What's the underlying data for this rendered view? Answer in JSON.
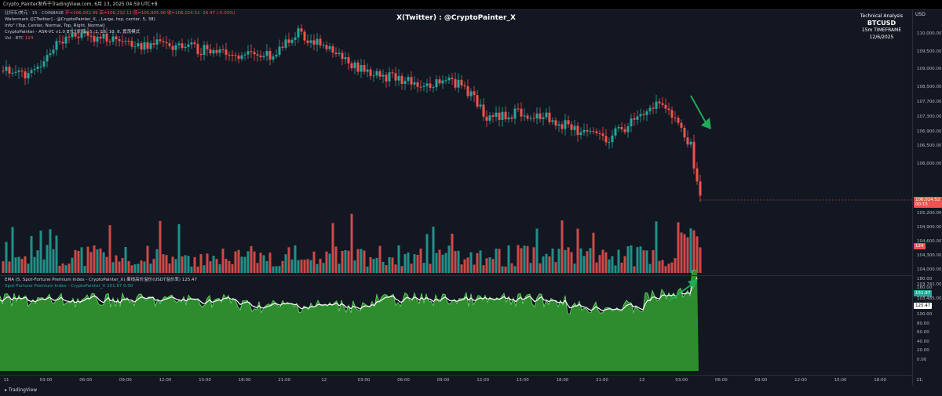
{
  "window": {
    "title": "Crypto_Painter发布于TradingView.com, 6月 13, 2025 04:59 UTC+8"
  },
  "legend": {
    "line1_label": "比特币/美元 · 15 · COINBASE",
    "line1_values": "开=106,002.99  高=106,232.11  低=105,905.96  收=106,024.52  -26.47 (-0.03%)",
    "line2": "Watermark ([CTwitter] - @CryptoPainter_X, , Large, top, center, 5, 38)",
    "line3": "Info\" (Top, Center, Normal, Top, Right, Normal)",
    "line4": "CryptoPainter - ASR-VC v1.0 BTC(原版), 5, 2, 16, 10, 8, 震荡模式",
    "line5_label": "Vol · BTC",
    "line5_value": "124"
  },
  "watermark": "X(Twitter) : @CryptoPainter_X",
  "info_box": {
    "line1": "Technical Analysis",
    "symbol": "BTCUSD",
    "timeframe": "15m TIMEFRAME",
    "date": "12/6/2025"
  },
  "price_axis": {
    "currency": "USD",
    "ticks": [
      "110,000.00",
      "109,500.00",
      "109,000.00",
      "108,500.00",
      "107,700.00",
      "107,300.00",
      "106,900.00",
      "106,500.00",
      "106,000.00",
      "105,200.00",
      "104,900.00",
      "104,600.00",
      "104,300.00",
      "104,000.00",
      "103,741.00",
      "103,485.00"
    ],
    "price_badge": "106,024.52",
    "countdown": "00:15",
    "vol_badge": "124"
  },
  "oscillator": {
    "legend1": "EMA (5, Spot-Fortune Premium Index - CryptoPainter_X) 离线高价溢价(USDT溢价率)  125.47",
    "legend2": "Spot-Fortune Premium Index - CryptoPainter_X  151.97  0.00",
    "ticks": [
      "180.00",
      "160.00",
      "140.00",
      "120.00",
      "100.00",
      "80.00",
      "60.00",
      "40.00",
      "20.00",
      "0.00"
    ],
    "badge_green": "151.97",
    "badge_white": "125.47"
  },
  "time_axis": {
    "ticks": [
      "11",
      "03:00",
      "06:00",
      "09:00",
      "12:00",
      "15:00",
      "18:00",
      "21:00",
      "12",
      "03:00",
      "06:00",
      "09:00",
      "12:00",
      "15:00",
      "18:00",
      "21:00",
      "13",
      "03:00",
      "06:00",
      "09:00",
      "12:00",
      "15:00",
      "18:00",
      "21:"
    ]
  },
  "footer": {
    "brand": "TradingView"
  },
  "colors": {
    "up": "#26a69a",
    "down": "#ef5350",
    "osc_fill": "#2e8b2e",
    "arrow": "#1faa59",
    "bg": "#131722"
  }
}
